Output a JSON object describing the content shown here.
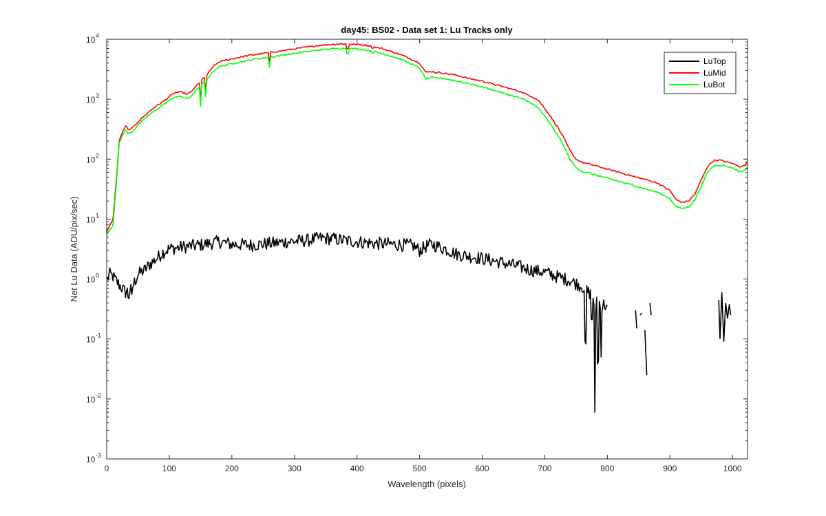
{
  "chart_data": {
    "type": "line",
    "title": "day45: BS02 - Data set 1: Lu Tracks only",
    "xlabel": "Wavelength (pixels)",
    "ylabel": "Net Lu Data (ADU/pix/sec)",
    "xlim": [
      0,
      1024
    ],
    "ylim": [
      0.001,
      10000
    ],
    "yscale": "log",
    "grid": false,
    "legend_position": "top-right",
    "x_ticks": [
      "0",
      "100",
      "200",
      "300",
      "400",
      "500",
      "600",
      "700",
      "800",
      "900",
      "1000"
    ],
    "y_tick_bases": [
      "10",
      "10",
      "10",
      "10",
      "10",
      "10",
      "10",
      "10"
    ],
    "y_tick_exponents": [
      "-3",
      "-2",
      "-1",
      "0",
      "1",
      "2",
      "3",
      "4"
    ],
    "series": [
      {
        "name": "LuTop",
        "color": "#000000",
        "points": [
          [
            1,
            1.0
          ],
          [
            5,
            1.2
          ],
          [
            10,
            1.1
          ],
          [
            20,
            0.8
          ],
          [
            30,
            0.6
          ],
          [
            40,
            0.7
          ],
          [
            50,
            1.2
          ],
          [
            60,
            1.4
          ],
          [
            70,
            1.8
          ],
          [
            80,
            2.2
          ],
          [
            90,
            2.8
          ],
          [
            100,
            3.2
          ],
          [
            120,
            3.4
          ],
          [
            150,
            3.7
          ],
          [
            180,
            4.2
          ],
          [
            200,
            3.8
          ],
          [
            230,
            3.7
          ],
          [
            260,
            3.9
          ],
          [
            290,
            4.2
          ],
          [
            320,
            4.4
          ],
          [
            340,
            4.8
          ],
          [
            360,
            4.7
          ],
          [
            380,
            4.4
          ],
          [
            400,
            4.2
          ],
          [
            430,
            3.9
          ],
          [
            460,
            3.8
          ],
          [
            490,
            3.6
          ],
          [
            500,
            3.0
          ],
          [
            510,
            3.5
          ],
          [
            520,
            3.8
          ],
          [
            540,
            3.2
          ],
          [
            560,
            2.6
          ],
          [
            580,
            2.4
          ],
          [
            600,
            2.2
          ],
          [
            620,
            2.0
          ],
          [
            640,
            1.8
          ],
          [
            660,
            1.6
          ],
          [
            680,
            1.4
          ],
          [
            700,
            1.3
          ],
          [
            720,
            1.1
          ],
          [
            740,
            0.95
          ],
          [
            760,
            0.75
          ],
          [
            770,
            0.6
          ],
          [
            780,
            0.5
          ],
          [
            790,
            0.4
          ],
          [
            800,
            0.35
          ]
        ],
        "dips": [
          [
            35,
            0.4
          ],
          [
            40,
            0.55
          ],
          [
            765,
            0.015
          ],
          [
            775,
            0.1
          ],
          [
            780,
            0.006
          ],
          [
            785,
            0.006
          ],
          [
            790,
            0.05
          ]
        ],
        "fragments": [
          [
            [
              845,
              0.3
            ],
            [
              847,
              0.15
            ]
          ],
          [
            [
              852,
              0.25
            ],
            [
              855,
              0.27
            ]
          ],
          [
            [
              860,
              0.14
            ],
            [
              863,
              0.025
            ]
          ],
          [
            [
              868,
              0.4
            ],
            [
              870,
              0.25
            ]
          ],
          [
            [
              978,
              0.45
            ],
            [
              980,
              0.1
            ],
            [
              983,
              0.6
            ],
            [
              986,
              0.09
            ],
            [
              989,
              0.4
            ],
            [
              992,
              0.22
            ],
            [
              995,
              0.38
            ],
            [
              997,
              0.25
            ]
          ]
        ]
      },
      {
        "name": "LuMid",
        "color": "#ff0000",
        "points": [
          [
            0,
            6
          ],
          [
            10,
            10
          ],
          [
            15,
            40
          ],
          [
            20,
            200
          ],
          [
            25,
            280
          ],
          [
            30,
            350
          ],
          [
            40,
            320
          ],
          [
            50,
            420
          ],
          [
            60,
            520
          ],
          [
            70,
            650
          ],
          [
            80,
            780
          ],
          [
            90,
            900
          ],
          [
            100,
            1100
          ],
          [
            110,
            1300
          ],
          [
            120,
            1300
          ],
          [
            130,
            1200
          ],
          [
            140,
            1500
          ],
          [
            150,
            2000
          ],
          [
            160,
            2500
          ],
          [
            170,
            3500
          ],
          [
            180,
            4200
          ],
          [
            200,
            4700
          ],
          [
            220,
            5200
          ],
          [
            240,
            5600
          ],
          [
            260,
            6000
          ],
          [
            280,
            6400
          ],
          [
            300,
            6900
          ],
          [
            320,
            7400
          ],
          [
            340,
            7900
          ],
          [
            360,
            8200
          ],
          [
            380,
            8400
          ],
          [
            400,
            8200
          ],
          [
            420,
            7800
          ],
          [
            440,
            7000
          ],
          [
            460,
            6000
          ],
          [
            480,
            5000
          ],
          [
            500,
            4000
          ],
          [
            510,
            2800
          ],
          [
            520,
            2900
          ],
          [
            540,
            2700
          ],
          [
            560,
            2500
          ],
          [
            580,
            2200
          ],
          [
            600,
            2000
          ],
          [
            620,
            1750
          ],
          [
            640,
            1550
          ],
          [
            660,
            1350
          ],
          [
            680,
            1100
          ],
          [
            690,
            950
          ],
          [
            700,
            700
          ],
          [
            710,
            500
          ],
          [
            720,
            350
          ],
          [
            730,
            230
          ],
          [
            740,
            140
          ],
          [
            750,
            100
          ],
          [
            760,
            88
          ],
          [
            780,
            78
          ],
          [
            800,
            68
          ],
          [
            820,
            60
          ],
          [
            840,
            52
          ],
          [
            860,
            46
          ],
          [
            880,
            40
          ],
          [
            900,
            30
          ],
          [
            910,
            21
          ],
          [
            920,
            19
          ],
          [
            930,
            20
          ],
          [
            940,
            26
          ],
          [
            950,
            45
          ],
          [
            960,
            75
          ],
          [
            970,
            95
          ],
          [
            980,
            96
          ],
          [
            990,
            90
          ],
          [
            1000,
            85
          ],
          [
            1010,
            75
          ],
          [
            1020,
            78
          ],
          [
            1024,
            90
          ]
        ],
        "dips": [
          [
            35,
            270
          ],
          [
            150,
            900
          ],
          [
            158,
            1300
          ],
          [
            260,
            3900
          ],
          [
            385,
            5000
          ],
          [
            425,
            6500
          ],
          [
            525,
            2600
          ]
        ]
      },
      {
        "name": "LuBot",
        "color": "#00ff00",
        "points": [
          [
            0,
            5.5
          ],
          [
            10,
            8
          ],
          [
            15,
            35
          ],
          [
            20,
            180
          ],
          [
            25,
            250
          ],
          [
            30,
            300
          ],
          [
            40,
            280
          ],
          [
            50,
            370
          ],
          [
            60,
            460
          ],
          [
            70,
            570
          ],
          [
            80,
            680
          ],
          [
            90,
            800
          ],
          [
            100,
            950
          ],
          [
            110,
            1100
          ],
          [
            120,
            1100
          ],
          [
            130,
            1000
          ],
          [
            140,
            1300
          ],
          [
            150,
            1700
          ],
          [
            160,
            2100
          ],
          [
            170,
            2900
          ],
          [
            180,
            3500
          ],
          [
            200,
            3900
          ],
          [
            220,
            4300
          ],
          [
            240,
            4700
          ],
          [
            260,
            5000
          ],
          [
            280,
            5400
          ],
          [
            300,
            5800
          ],
          [
            320,
            6200
          ],
          [
            340,
            6600
          ],
          [
            360,
            6900
          ],
          [
            380,
            7100
          ],
          [
            400,
            6900
          ],
          [
            420,
            6500
          ],
          [
            440,
            5800
          ],
          [
            460,
            5000
          ],
          [
            480,
            4200
          ],
          [
            500,
            3300
          ],
          [
            510,
            2200
          ],
          [
            520,
            2300
          ],
          [
            540,
            2200
          ],
          [
            560,
            2000
          ],
          [
            580,
            1800
          ],
          [
            600,
            1600
          ],
          [
            620,
            1400
          ],
          [
            640,
            1200
          ],
          [
            660,
            1050
          ],
          [
            680,
            850
          ],
          [
            690,
            700
          ],
          [
            700,
            520
          ],
          [
            710,
            370
          ],
          [
            720,
            260
          ],
          [
            730,
            170
          ],
          [
            740,
            100
          ],
          [
            750,
            72
          ],
          [
            760,
            62
          ],
          [
            780,
            55
          ],
          [
            800,
            48
          ],
          [
            820,
            42
          ],
          [
            840,
            37
          ],
          [
            860,
            32
          ],
          [
            880,
            28
          ],
          [
            900,
            22
          ],
          [
            910,
            16
          ],
          [
            920,
            15
          ],
          [
            930,
            16
          ],
          [
            940,
            21
          ],
          [
            950,
            36
          ],
          [
            960,
            60
          ],
          [
            970,
            78
          ],
          [
            980,
            80
          ],
          [
            990,
            76
          ],
          [
            1000,
            72
          ],
          [
            1010,
            62
          ],
          [
            1020,
            65
          ],
          [
            1024,
            75
          ]
        ],
        "dips": [
          [
            35,
            230
          ],
          [
            150,
            750
          ],
          [
            158,
            1100
          ],
          [
            260,
            3400
          ],
          [
            385,
            4200
          ],
          [
            425,
            5500
          ],
          [
            525,
            2200
          ]
        ]
      }
    ]
  }
}
